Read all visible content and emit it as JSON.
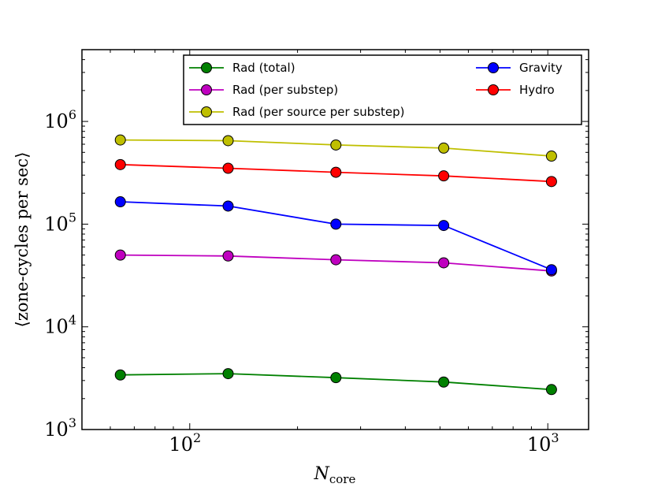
{
  "chart_data": {
    "type": "line",
    "xlabel": "N",
    "xlabel_sub": "core",
    "ylabel": "⟨zone-cycles per sec⟩",
    "xscale": "log",
    "yscale": "log",
    "xlim": [
      50,
      1300
    ],
    "ylim": [
      1000,
      5000000
    ],
    "grid": false,
    "legend_placement": "top-right",
    "x_ticks": [
      {
        "base": "10",
        "exp": "2",
        "value": 100
      },
      {
        "base": "10",
        "exp": "3",
        "value": 1000
      }
    ],
    "y_ticks": [
      {
        "base": "10",
        "exp": "3",
        "value": 1000
      },
      {
        "base": "10",
        "exp": "4",
        "value": 10000
      },
      {
        "base": "10",
        "exp": "5",
        "value": 100000
      },
      {
        "base": "10",
        "exp": "6",
        "value": 1000000
      }
    ],
    "x": [
      64,
      128,
      256,
      512,
      1024
    ],
    "series": [
      {
        "name": "Rad (total)",
        "color": "#008000",
        "values": [
          3400,
          3500,
          3200,
          2900,
          2450
        ]
      },
      {
        "name": "Rad (per substep)",
        "color": "#bf00bf",
        "values": [
          50000,
          49000,
          45000,
          42000,
          35000
        ]
      },
      {
        "name": "Rad (per source per substep)",
        "color": "#bfbf00",
        "values": [
          660000,
          650000,
          590000,
          550000,
          460000
        ]
      },
      {
        "name": "Gravity",
        "color": "#0000ff",
        "values": [
          165000,
          150000,
          100000,
          97000,
          36000
        ]
      },
      {
        "name": "Hydro",
        "color": "#ff0000",
        "values": [
          380000,
          350000,
          320000,
          295000,
          260000
        ]
      }
    ],
    "legend_columns": [
      [
        "Rad (total)",
        "Rad (per substep)",
        "Rad (per source per substep)"
      ],
      [
        "Gravity",
        "Hydro"
      ]
    ]
  }
}
